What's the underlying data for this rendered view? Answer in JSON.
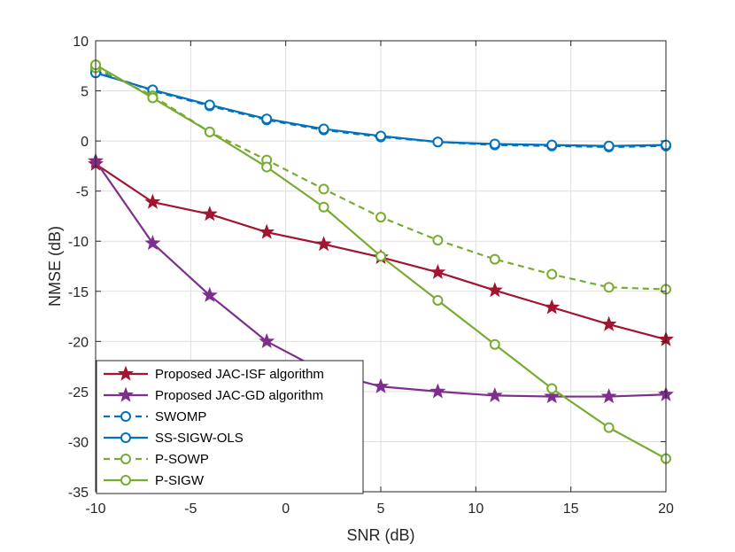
{
  "chart_data": {
    "type": "line",
    "xlabel": "SNR (dB)",
    "ylabel": "NMSE (dB)",
    "xlim": [
      -10,
      20
    ],
    "ylim": [
      -35,
      10
    ],
    "xticks": [
      -10,
      -5,
      0,
      5,
      10,
      15,
      20
    ],
    "yticks": [
      10,
      5,
      0,
      -5,
      -10,
      -15,
      -20,
      -25,
      -30,
      -35
    ],
    "x": [
      -10,
      -7,
      -4,
      -1,
      2,
      5,
      8,
      11,
      14,
      17,
      20
    ],
    "grid": true,
    "legend_position": "bottom-left",
    "series": [
      {
        "name": "Proposed JAC-ISF algorithm",
        "color": "#A2142F",
        "dash": "solid",
        "marker": "star",
        "values": [
          -2.3,
          -6.1,
          -7.3,
          -9.1,
          -10.3,
          -11.6,
          -13.1,
          -14.9,
          -16.6,
          -18.3,
          -19.8
        ]
      },
      {
        "name": "Proposed JAC-GD algorithm",
        "color": "#7E2F8E",
        "dash": "solid",
        "marker": "star",
        "values": [
          -2.0,
          -10.2,
          -15.4,
          -20.0,
          -23.0,
          -24.5,
          -25.0,
          -25.4,
          -25.5,
          -25.5,
          -25.3
        ]
      },
      {
        "name": "SWOMP",
        "color": "#0072BD",
        "dash": "dashed",
        "marker": "circle",
        "values": [
          7.0,
          5.0,
          3.5,
          2.1,
          1.1,
          0.4,
          -0.1,
          -0.4,
          -0.5,
          -0.6,
          -0.5
        ]
      },
      {
        "name": "SS-SIGW-OLS",
        "color": "#0072BD",
        "dash": "solid",
        "marker": "circle",
        "values": [
          6.8,
          5.1,
          3.6,
          2.2,
          1.2,
          0.5,
          -0.1,
          -0.3,
          -0.4,
          -0.5,
          -0.4
        ]
      },
      {
        "name": "P-SOWP",
        "color": "#77AC30",
        "dash": "dashed",
        "marker": "circle",
        "values": [
          7.3,
          4.5,
          0.9,
          -1.9,
          -4.8,
          -7.6,
          -9.9,
          -11.8,
          -13.3,
          -14.6,
          -14.8
        ]
      },
      {
        "name": "P-SIGW",
        "color": "#77AC30",
        "dash": "solid",
        "marker": "circle",
        "values": [
          7.6,
          4.3,
          0.9,
          -2.6,
          -6.6,
          -11.5,
          -15.9,
          -20.3,
          -24.7,
          -28.6,
          -31.7
        ]
      }
    ]
  }
}
